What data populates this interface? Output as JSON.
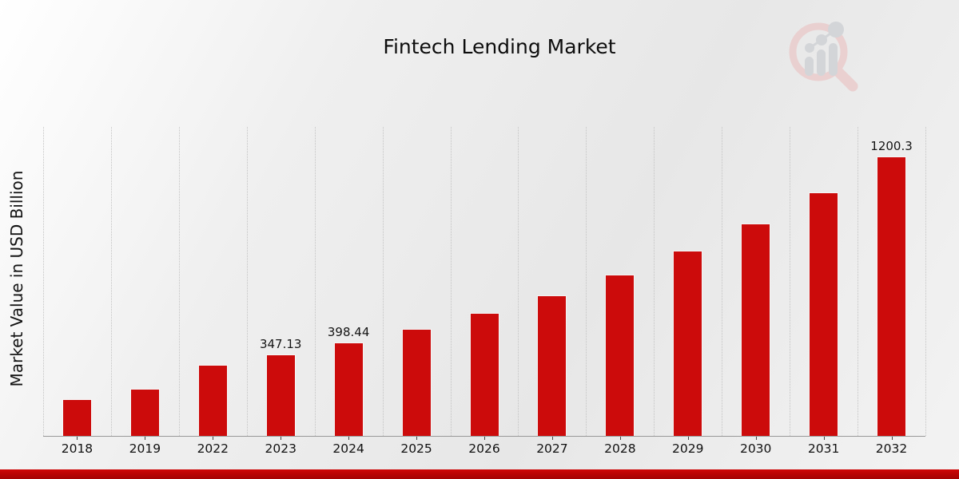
{
  "title": "Fintech Lending Market",
  "y_axis_label": "Market Value in USD Billion",
  "logo_name": "market-research-magnifier-logo",
  "colors": {
    "bar": "#cc0b0b",
    "footer_band": "#b50404",
    "grid": "#c3c3c3",
    "axis": "#999999",
    "text": "#111111",
    "background_start": "#ffffff",
    "background_end": "#e7e7e7",
    "logo_ring": "#eacfcf",
    "logo_gray": "#d2d4d8"
  },
  "chart_data": {
    "type": "bar",
    "title": "Fintech Lending Market",
    "xlabel": "",
    "ylabel": "Market Value in USD Billion",
    "categories": [
      "2018",
      "2019",
      "2022",
      "2023",
      "2024",
      "2025",
      "2026",
      "2027",
      "2028",
      "2029",
      "2030",
      "2031",
      "2032"
    ],
    "values": [
      155,
      199,
      302.4,
      347.13,
      398.44,
      457.3,
      524.9,
      602.5,
      691.6,
      793.8,
      911.2,
      1045.9,
      1200.3
    ],
    "data_labels": {
      "2023": "347.13",
      "2024": "398.44",
      "2032": "1200.3"
    },
    "ylim": [
      0,
      1330
    ],
    "bar_color": "#cc0b0b",
    "grid": "vertical-dotted",
    "legend": "none",
    "y_axis_ticks_visible": false
  }
}
